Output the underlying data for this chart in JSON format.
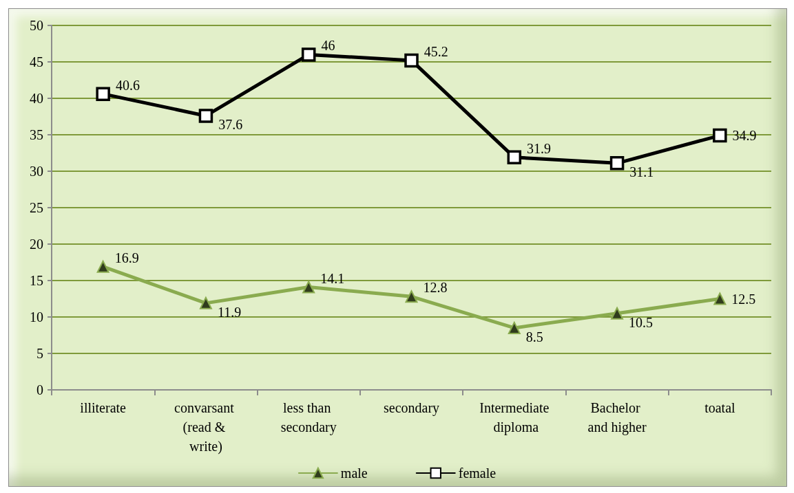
{
  "chart_data": {
    "type": "line",
    "categories": [
      "illiterate",
      "convarsant (read & write)",
      "less than secondary",
      "secondary",
      "Intermediate diploma",
      "Bachelor and higher",
      "toatal"
    ],
    "series": [
      {
        "name": "male",
        "color": "#8aab4f",
        "marker": "triangle",
        "values": [
          16.9,
          11.9,
          14.1,
          12.8,
          8.5,
          10.5,
          12.5
        ]
      },
      {
        "name": "female",
        "color": "#000000",
        "marker": "square",
        "values": [
          40.6,
          37.6,
          46,
          45.2,
          31.9,
          31.1,
          34.9
        ]
      }
    ],
    "ylim": [
      0,
      50
    ],
    "yticks": [
      0,
      5,
      10,
      15,
      20,
      25,
      30,
      35,
      40,
      45,
      50
    ],
    "grid": "y",
    "legend": "bottom",
    "data_labels": true
  }
}
